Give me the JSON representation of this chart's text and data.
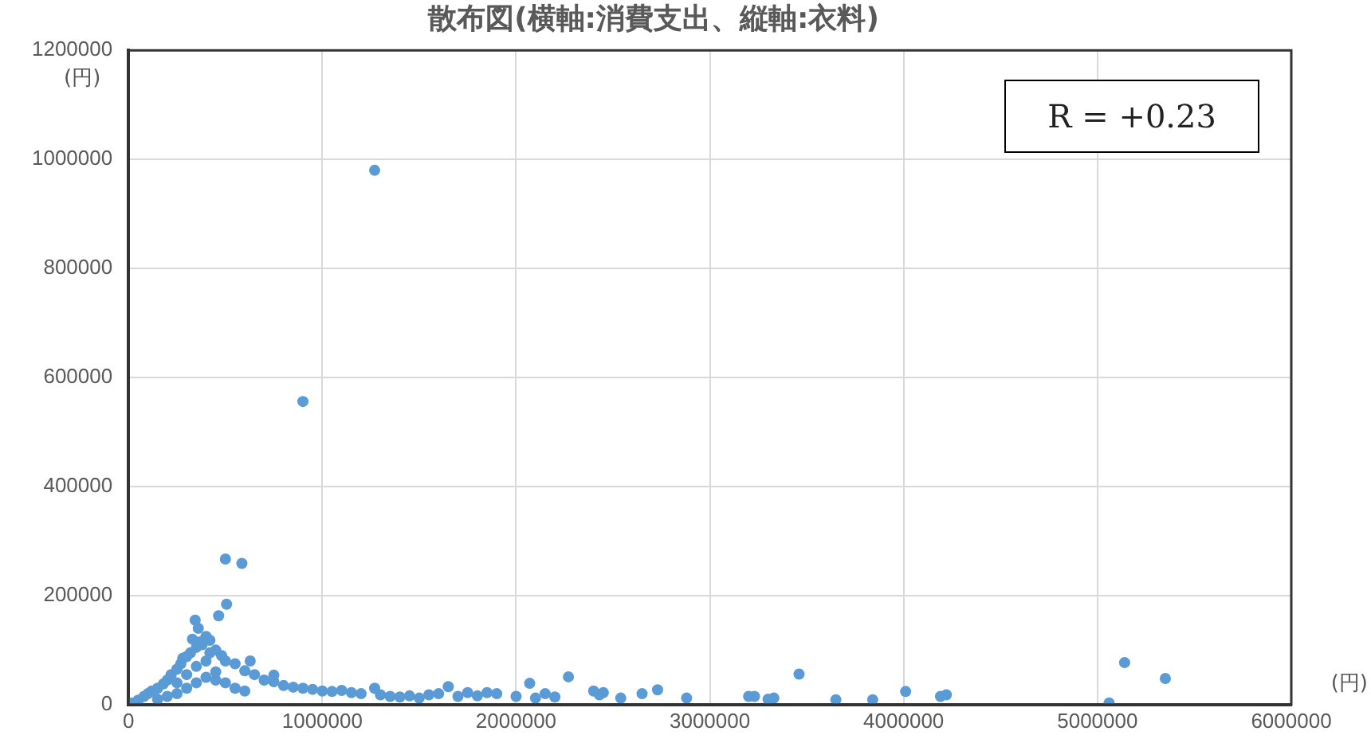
{
  "chart_data": {
    "type": "scatter",
    "title": "散布図(横軸:消費支出、縦軸:衣料)",
    "xlabel": "(円)",
    "ylabel": "(円)",
    "annotations": [
      "R = +0.23"
    ],
    "series": [
      {
        "color": "#5b9bd5",
        "x": [
          1270000,
          900000,
          500000,
          585000,
          506000,
          465000,
          344000,
          628000,
          750000,
          1270000,
          1650000,
          2070000,
          2270000,
          2430000,
          2540000,
          2730000,
          2880000,
          3230000,
          3330000,
          3460000,
          3650000,
          3840000,
          4010000,
          4190000,
          4220000,
          5140000,
          5350000,
          5060000,
          20000,
          50000,
          80000,
          100000,
          120000,
          150000,
          180000,
          200000,
          220000,
          250000,
          270000,
          300000,
          320000,
          350000,
          370000,
          400000,
          420000,
          450000,
          480000,
          500000,
          550000,
          600000,
          650000,
          700000,
          750000,
          800000,
          850000,
          900000,
          950000,
          1000000,
          1050000,
          1100000,
          1150000,
          1200000,
          1300000,
          1350000,
          1400000,
          1450000,
          1500000,
          1550000,
          1600000,
          1700000,
          1750000,
          1800000,
          1850000,
          1900000,
          2000000,
          2100000,
          2150000,
          2200000,
          2400000,
          2450000,
          2650000,
          3200000,
          3300000,
          150000,
          200000,
          250000,
          300000,
          350000,
          400000,
          450000,
          500000,
          550000,
          600000,
          250000,
          300000,
          350000,
          400000,
          450000,
          330000,
          380000,
          280000,
          360000,
          420000
        ],
        "values": [
          980000,
          556000,
          267000,
          259000,
          184000,
          163000,
          155000,
          80000,
          54000,
          30000,
          33000,
          39000,
          51000,
          18000,
          12000,
          27000,
          12000,
          15000,
          12000,
          56000,
          9000,
          9000,
          24000,
          15000,
          18000,
          77000,
          48000,
          3000,
          3000,
          8000,
          15000,
          20000,
          25000,
          30000,
          38000,
          45000,
          55000,
          65000,
          75000,
          88000,
          95000,
          105000,
          115000,
          125000,
          118000,
          100000,
          90000,
          80000,
          75000,
          62000,
          55000,
          45000,
          42000,
          35000,
          32000,
          30000,
          28000,
          25000,
          24000,
          26000,
          22000,
          20000,
          18000,
          15000,
          14000,
          16000,
          12000,
          18000,
          20000,
          15000,
          22000,
          16000,
          22000,
          20000,
          15000,
          12000,
          20000,
          14000,
          25000,
          22000,
          20000,
          15000,
          10000,
          10000,
          15000,
          20000,
          30000,
          40000,
          50000,
          45000,
          40000,
          30000,
          25000,
          40000,
          55000,
          70000,
          80000,
          60000,
          120000,
          110000,
          85000,
          140000,
          95000
        ]
      }
    ],
    "xlim": [
      0,
      6000000
    ],
    "xticks": [
      0,
      1000000,
      2000000,
      3000000,
      4000000,
      5000000,
      6000000
    ],
    "ylim": [
      0,
      1200000
    ],
    "yticks": [
      0,
      200000,
      400000,
      600000,
      800000,
      1000000,
      1200000
    ],
    "grid": true,
    "legend": false,
    "marker": "circle"
  }
}
